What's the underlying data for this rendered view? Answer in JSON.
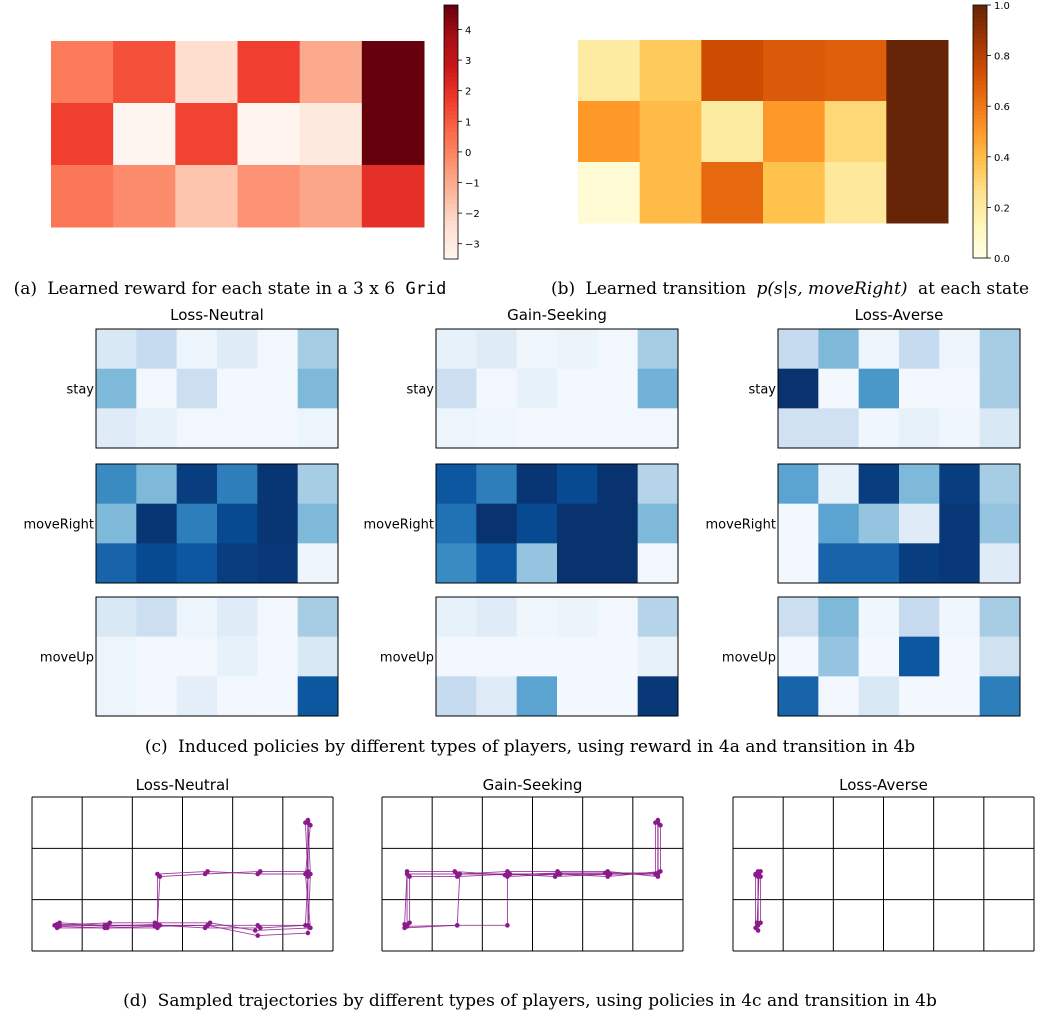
{
  "chart_data": [
    {
      "type": "heatmap",
      "id": "a",
      "caption": {
        "label": "(a)",
        "text": "Learned reward for each state in a 3 x 6",
        "code": "Grid"
      },
      "rows": 3,
      "cols": 6,
      "colorscale": "Reds",
      "vmin": -3.5,
      "vmax": 4.8,
      "colorbar_ticks": [
        4,
        3,
        2,
        1,
        0,
        -1,
        -2,
        -3
      ],
      "values": [
        [
          0.2,
          1.2,
          -2.4,
          1.6,
          -1.0,
          4.8
        ],
        [
          1.6,
          -3.5,
          1.5,
          -3.4,
          -2.9,
          4.8
        ],
        [
          0.3,
          -0.2,
          -1.7,
          -0.4,
          -0.9,
          2.0
        ]
      ]
    },
    {
      "type": "heatmap",
      "id": "b",
      "caption": {
        "label": "(b)",
        "text": "Learned transition",
        "math": "p(s|s, moveRight)",
        "tail": "at each state"
      },
      "rows": 3,
      "cols": 6,
      "colorscale": "YlOrBr",
      "vmin": 0.0,
      "vmax": 1.0,
      "colorbar_ticks": [
        1.0,
        0.8,
        0.6,
        0.4,
        0.2,
        0.0
      ],
      "values": [
        [
          0.2,
          0.35,
          0.75,
          0.7,
          0.68,
          1.0
        ],
        [
          0.5,
          0.4,
          0.2,
          0.5,
          0.3,
          1.0
        ],
        [
          0.05,
          0.4,
          0.65,
          0.38,
          0.22,
          1.0
        ]
      ]
    },
    {
      "type": "heatmap",
      "id": "c",
      "caption": {
        "label": "(c)",
        "text": "Induced policies by different types of players, using reward in 4a and transition in 4b"
      },
      "colorscale": "Blues",
      "vmin": 0.0,
      "vmax": 1.0,
      "rows": 3,
      "cols": 6,
      "row_labels": [
        "stay",
        "moveRight",
        "moveUp"
      ],
      "players": [
        {
          "title": "Loss-Neutral",
          "stay": [
            [
              0.15,
              0.25,
              0.05,
              0.12,
              0.03,
              0.35
            ],
            [
              0.45,
              0.03,
              0.22,
              0.02,
              0.02,
              0.45
            ],
            [
              0.12,
              0.08,
              0.03,
              0.03,
              0.03,
              0.05
            ]
          ],
          "moveRight": [
            [
              0.65,
              0.45,
              0.95,
              0.7,
              0.98,
              0.35
            ],
            [
              0.45,
              0.98,
              0.7,
              0.9,
              0.98,
              0.45
            ],
            [
              0.8,
              0.9,
              0.85,
              0.95,
              0.97,
              0.05
            ]
          ],
          "moveUp": [
            [
              0.15,
              0.22,
              0.05,
              0.12,
              0.03,
              0.35
            ],
            [
              0.05,
              0.02,
              0.03,
              0.08,
              0.02,
              0.15
            ],
            [
              0.05,
              0.02,
              0.1,
              0.03,
              0.02,
              0.85
            ]
          ]
        },
        {
          "title": "Gain-Seeking",
          "stay": [
            [
              0.08,
              0.12,
              0.04,
              0.06,
              0.03,
              0.35
            ],
            [
              0.22,
              0.03,
              0.08,
              0.02,
              0.02,
              0.48
            ],
            [
              0.05,
              0.04,
              0.02,
              0.02,
              0.02,
              0.03
            ]
          ],
          "moveRight": [
            [
              0.85,
              0.7,
              0.98,
              0.9,
              0.99,
              0.3
            ],
            [
              0.75,
              0.99,
              0.9,
              0.99,
              0.99,
              0.45
            ],
            [
              0.65,
              0.85,
              0.4,
              0.99,
              0.99,
              0.03
            ]
          ],
          "moveUp": [
            [
              0.08,
              0.12,
              0.04,
              0.06,
              0.03,
              0.3
            ],
            [
              0.02,
              0.02,
              0.02,
              0.02,
              0.02,
              0.08
            ],
            [
              0.25,
              0.12,
              0.55,
              0.02,
              0.02,
              0.97
            ]
          ]
        },
        {
          "title": "Loss-Averse",
          "stay": [
            [
              0.25,
              0.45,
              0.05,
              0.25,
              0.05,
              0.35
            ],
            [
              0.99,
              0.02,
              0.6,
              0.02,
              0.02,
              0.35
            ],
            [
              0.2,
              0.2,
              0.04,
              0.08,
              0.04,
              0.15
            ]
          ],
          "moveRight": [
            [
              0.55,
              0.08,
              0.95,
              0.45,
              0.95,
              0.35
            ],
            [
              0.02,
              0.55,
              0.4,
              0.12,
              0.97,
              0.4
            ],
            [
              0.02,
              0.8,
              0.8,
              0.95,
              0.97,
              0.12
            ]
          ],
          "moveUp": [
            [
              0.22,
              0.45,
              0.04,
              0.25,
              0.04,
              0.35
            ],
            [
              0.02,
              0.4,
              0.02,
              0.85,
              0.02,
              0.2
            ],
            [
              0.8,
              0.03,
              0.15,
              0.02,
              0.02,
              0.7
            ]
          ]
        }
      ]
    },
    {
      "type": "scatter",
      "id": "d",
      "caption": {
        "label": "(d)",
        "text": "Sampled trajectories by different types of players, using policies in 4c and transition in 4b"
      },
      "rows": 3,
      "cols": 6,
      "point_color": "#8b1a8b",
      "players": [
        {
          "title": "Loss-Neutral",
          "paths": [
            [
              [
                0.5,
                0.5
              ],
              [
                1.5,
                0.5
              ],
              [
                2.5,
                0.5
              ],
              [
                3.5,
                0.5
              ],
              [
                4.5,
                0.5
              ],
              [
                5.5,
                0.5
              ],
              [
                5.5,
                1.5
              ],
              [
                5.5,
                2.5
              ]
            ],
            [
              [
                0.5,
                0.45
              ],
              [
                1.5,
                0.45
              ],
              [
                2.5,
                0.45
              ],
              [
                2.5,
                1.5
              ],
              [
                3.5,
                1.55
              ],
              [
                4.5,
                1.5
              ],
              [
                5.5,
                1.5
              ],
              [
                5.5,
                2.55
              ]
            ],
            [
              [
                0.55,
                0.55
              ],
              [
                1.45,
                0.5
              ],
              [
                2.55,
                0.5
              ],
              [
                3.45,
                0.45
              ],
              [
                4.55,
                0.45
              ],
              [
                5.45,
                0.5
              ],
              [
                5.5,
                1.45
              ],
              [
                5.45,
                2.5
              ]
            ],
            [
              [
                0.45,
                0.5
              ],
              [
                1.55,
                0.55
              ],
              [
                2.45,
                0.55
              ],
              [
                3.55,
                0.55
              ],
              [
                4.45,
                0.4
              ],
              [
                5.55,
                0.45
              ],
              [
                5.45,
                1.5
              ],
              [
                5.55,
                2.45
              ]
            ],
            [
              [
                0.5,
                0.52
              ],
              [
                1.5,
                0.48
              ],
              [
                2.5,
                0.52
              ],
              [
                2.55,
                1.45
              ],
              [
                3.45,
                1.5
              ],
              [
                4.55,
                1.55
              ],
              [
                5.5,
                1.55
              ],
              [
                5.5,
                2.5
              ]
            ],
            [
              [
                0.55,
                0.48
              ],
              [
                1.45,
                0.45
              ],
              [
                2.45,
                0.48
              ],
              [
                3.5,
                0.5
              ],
              [
                4.5,
                0.3
              ],
              [
                5.5,
                0.35
              ],
              [
                5.55,
                1.5
              ],
              [
                5.5,
                2.52
              ]
            ]
          ]
        },
        {
          "title": "Gain-Seeking",
          "paths": [
            [
              [
                0.5,
                0.5
              ],
              [
                0.5,
                1.5
              ],
              [
                1.5,
                1.5
              ],
              [
                2.5,
                1.5
              ],
              [
                3.5,
                1.5
              ],
              [
                4.5,
                1.5
              ],
              [
                5.5,
                1.5
              ],
              [
                5.5,
                2.5
              ]
            ],
            [
              [
                0.45,
                0.45
              ],
              [
                1.5,
                0.5
              ],
              [
                1.55,
                1.5
              ],
              [
                2.5,
                1.55
              ],
              [
                3.5,
                1.55
              ],
              [
                4.5,
                1.55
              ],
              [
                5.5,
                1.45
              ],
              [
                5.5,
                2.55
              ]
            ],
            [
              [
                0.55,
                0.55
              ],
              [
                0.55,
                1.45
              ],
              [
                1.5,
                1.45
              ],
              [
                2.55,
                1.5
              ],
              [
                3.45,
                1.45
              ],
              [
                4.55,
                1.5
              ],
              [
                5.45,
                1.5
              ],
              [
                5.45,
                2.5
              ]
            ],
            [
              [
                0.5,
                0.48
              ],
              [
                1.5,
                0.5
              ],
              [
                2.5,
                0.5
              ],
              [
                2.5,
                1.45
              ],
              [
                3.55,
                1.5
              ],
              [
                4.5,
                1.45
              ],
              [
                5.55,
                1.55
              ],
              [
                5.55,
                2.45
              ]
            ],
            [
              [
                0.45,
                0.52
              ],
              [
                0.5,
                1.55
              ],
              [
                1.45,
                1.55
              ],
              [
                2.45,
                1.48
              ],
              [
                3.5,
                1.52
              ],
              [
                4.45,
                1.52
              ],
              [
                5.5,
                1.52
              ],
              [
                5.5,
                2.52
              ]
            ]
          ]
        },
        {
          "title": "Loss-Averse",
          "paths": [
            [
              [
                0.5,
                0.5
              ],
              [
                0.5,
                1.5
              ],
              [
                0.5,
                1.45
              ]
            ],
            [
              [
                0.45,
                0.45
              ],
              [
                0.45,
                1.5
              ],
              [
                0.55,
                1.55
              ]
            ],
            [
              [
                0.55,
                0.55
              ],
              [
                0.55,
                1.45
              ],
              [
                0.5,
                1.55
              ]
            ],
            [
              [
                0.5,
                0.4
              ],
              [
                0.5,
                1.52
              ],
              [
                0.45,
                1.48
              ]
            ],
            [
              [
                0.48,
                0.55
              ],
              [
                0.52,
                1.48
              ],
              [
                0.5,
                1.5
              ]
            ]
          ]
        }
      ]
    }
  ]
}
